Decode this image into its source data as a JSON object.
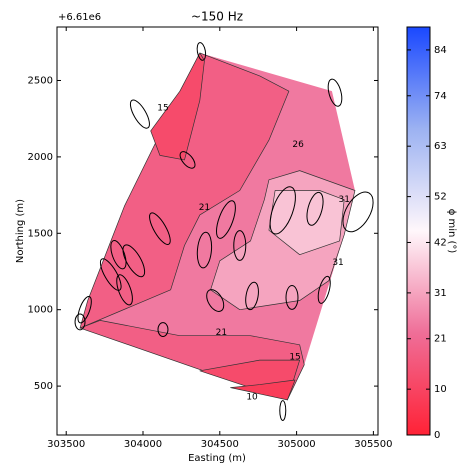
{
  "chart_data": {
    "type": "contour",
    "title": "~150 Hz",
    "offset_text": "+6.61e6",
    "xlabel": "Easting (m)",
    "ylabel": "Northing (m)",
    "xlim": [
      303440,
      305530
    ],
    "ylim": [
      180,
      2850
    ],
    "xticks": [
      303500,
      304000,
      304500,
      305000,
      305500
    ],
    "yticks": [
      500,
      1000,
      1500,
      2000,
      2500
    ],
    "regions": [
      {
        "value": 24,
        "points": [
          [
            304370,
            2680
          ],
          [
            305230,
            2430
          ],
          [
            305380,
            1780
          ],
          [
            305310,
            1490
          ],
          [
            305050,
            640
          ],
          [
            304940,
            410
          ],
          [
            303590,
            880
          ],
          [
            303640,
            1060
          ],
          [
            303880,
            1680
          ]
        ]
      },
      {
        "value": 18,
        "points": [
          [
            304370,
            2680
          ],
          [
            303880,
            1680
          ],
          [
            303640,
            1060
          ],
          [
            303590,
            880
          ],
          [
            304180,
            1130
          ],
          [
            304270,
            1420
          ],
          [
            304370,
            1620
          ],
          [
            304630,
            1780
          ],
          [
            304820,
            2110
          ],
          [
            304950,
            2430
          ],
          [
            304760,
            2530
          ]
        ]
      },
      {
        "value": 12,
        "points": [
          [
            304370,
            2680
          ],
          [
            304240,
            2430
          ],
          [
            304050,
            2170
          ],
          [
            304110,
            2010
          ],
          [
            304270,
            1980
          ],
          [
            304370,
            2370
          ],
          [
            304400,
            2630
          ]
        ]
      },
      {
        "value": 31,
        "points": [
          [
            304820,
            1850
          ],
          [
            305020,
            1910
          ],
          [
            305380,
            1780
          ],
          [
            305310,
            1490
          ],
          [
            305210,
            1190
          ],
          [
            305020,
            1060
          ],
          [
            304630,
            1000
          ],
          [
            304440,
            1130
          ],
          [
            304500,
            1320
          ],
          [
            304700,
            1450
          ],
          [
            304790,
            1720
          ]
        ]
      },
      {
        "value": 36,
        "points": [
          [
            304860,
            1780
          ],
          [
            305150,
            1780
          ],
          [
            305310,
            1720
          ],
          [
            305280,
            1450
          ],
          [
            305020,
            1360
          ],
          [
            304820,
            1520
          ]
        ]
      },
      {
        "value": 18,
        "points": [
          [
            303590,
            880
          ],
          [
            304940,
            410
          ],
          [
            305050,
            640
          ],
          [
            305020,
            770
          ],
          [
            304700,
            830
          ],
          [
            304240,
            830
          ],
          [
            303720,
            930
          ]
        ]
      },
      {
        "value": 12,
        "points": [
          [
            304370,
            600
          ],
          [
            304760,
            670
          ],
          [
            305020,
            670
          ],
          [
            304940,
            410
          ]
        ]
      },
      {
        "value": 8,
        "points": [
          [
            304570,
            490
          ],
          [
            304940,
            410
          ],
          [
            304990,
            540
          ],
          [
            304760,
            510
          ]
        ]
      }
    ],
    "contour_labels": [
      {
        "value": 15,
        "x": 304130,
        "y": 2320
      },
      {
        "value": 26,
        "x": 305010,
        "y": 2080
      },
      {
        "value": 21,
        "x": 304400,
        "y": 1670
      },
      {
        "value": 31,
        "x": 305310,
        "y": 1720
      },
      {
        "value": 31,
        "x": 305270,
        "y": 1310
      },
      {
        "value": 21,
        "x": 304510,
        "y": 850
      },
      {
        "value": 15,
        "x": 304990,
        "y": 690
      },
      {
        "value": 10,
        "x": 304710,
        "y": 430
      }
    ],
    "ellipses": [
      {
        "x": 304380,
        "y": 2690,
        "width": 52,
        "height": 117,
        "angle": -10
      },
      {
        "x": 303980,
        "y": 2280,
        "width": 78,
        "height": 208,
        "angle": -30
      },
      {
        "x": 304290,
        "y": 1980,
        "width": 65,
        "height": 130,
        "angle": -40
      },
      {
        "x": 305250,
        "y": 2420,
        "width": 78,
        "height": 182,
        "angle": -15
      },
      {
        "x": 304110,
        "y": 1530,
        "width": 78,
        "height": 234,
        "angle": -30
      },
      {
        "x": 304540,
        "y": 1590,
        "width": 91,
        "height": 260,
        "angle": 20
      },
      {
        "x": 304400,
        "y": 1390,
        "width": 91,
        "height": 234,
        "angle": 5
      },
      {
        "x": 304630,
        "y": 1420,
        "width": 78,
        "height": 195,
        "angle": 0
      },
      {
        "x": 304910,
        "y": 1650,
        "width": 130,
        "height": 325,
        "angle": 20
      },
      {
        "x": 305120,
        "y": 1660,
        "width": 91,
        "height": 221,
        "angle": 15
      },
      {
        "x": 305400,
        "y": 1640,
        "width": 156,
        "height": 286,
        "angle": 30
      },
      {
        "x": 303840,
        "y": 1360,
        "width": 78,
        "height": 195,
        "angle": -20
      },
      {
        "x": 303940,
        "y": 1320,
        "width": 91,
        "height": 234,
        "angle": -30
      },
      {
        "x": 303790,
        "y": 1230,
        "width": 78,
        "height": 234,
        "angle": -30
      },
      {
        "x": 303880,
        "y": 1130,
        "width": 78,
        "height": 208,
        "angle": -20
      },
      {
        "x": 303620,
        "y": 1000,
        "width": 65,
        "height": 182,
        "angle": 20
      },
      {
        "x": 303590,
        "y": 920,
        "width": 65,
        "height": 104,
        "angle": 0
      },
      {
        "x": 304470,
        "y": 1060,
        "width": 91,
        "height": 156,
        "angle": -30
      },
      {
        "x": 304710,
        "y": 1090,
        "width": 78,
        "height": 182,
        "angle": 10
      },
      {
        "x": 304970,
        "y": 1080,
        "width": 78,
        "height": 156,
        "angle": 0
      },
      {
        "x": 305180,
        "y": 1130,
        "width": 65,
        "height": 182,
        "angle": 15
      },
      {
        "x": 304130,
        "y": 870,
        "width": 65,
        "height": 91,
        "angle": 0
      },
      {
        "x": 304910,
        "y": 340,
        "width": 39,
        "height": 130,
        "angle": 0
      }
    ],
    "colorbar": {
      "label": "ϕ min (°)",
      "lim": [
        0,
        89
      ],
      "ticks": [
        0,
        10,
        21,
        31,
        42,
        52,
        63,
        74,
        84
      ],
      "colors": [
        "#ff2236",
        "#ef6e98",
        "#fff7fb",
        "#9cb2f2",
        "#1a48ff"
      ]
    }
  }
}
